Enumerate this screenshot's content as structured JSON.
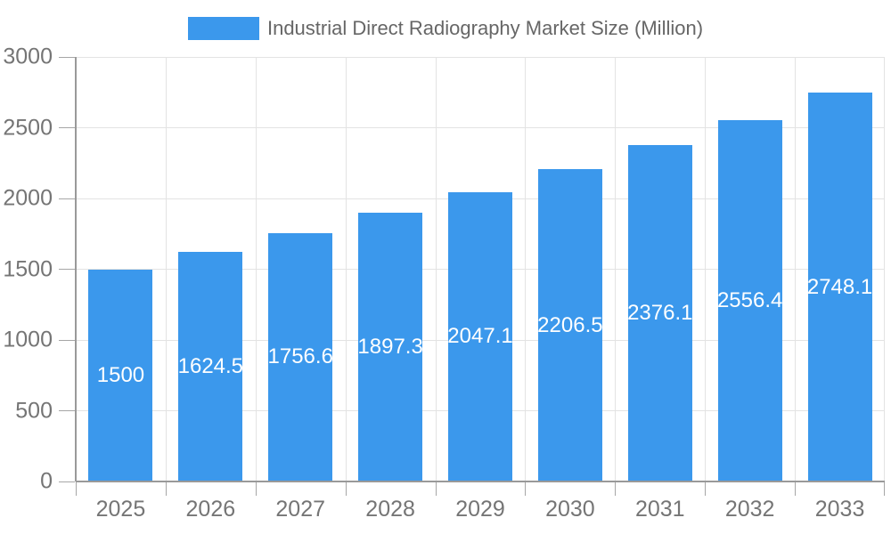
{
  "chart_data": {
    "type": "bar",
    "title": "Industrial Direct Radiography Market Size (Million)",
    "categories": [
      "2025",
      "2026",
      "2027",
      "2028",
      "2029",
      "2030",
      "2031",
      "2032",
      "2033"
    ],
    "values": [
      1500,
      1624.5,
      1756.6,
      1897.3,
      2047.1,
      2206.5,
      2376.1,
      2556.4,
      2748.1
    ],
    "value_labels": [
      "1500",
      "1624.5",
      "1756.6",
      "1897.3",
      "2047.1",
      "2206.5",
      "2376.1",
      "2556.4",
      "2748.1"
    ],
    "xlabel": "",
    "ylabel": "",
    "ylim": [
      0,
      3000
    ],
    "ytick_step": 500,
    "ytick_labels": [
      "0",
      "500",
      "1000",
      "1500",
      "2000",
      "2500",
      "3000"
    ],
    "grid": true,
    "legend_position": "top",
    "colors": {
      "bar": "#3b98ec",
      "bar_value_text": "#ffffff",
      "grid": "#e3e3e3",
      "axis": "#999999",
      "tick": "#a6a6a6",
      "axis_text": "#757575",
      "title_text": "#666666",
      "background": "#ffffff"
    }
  }
}
